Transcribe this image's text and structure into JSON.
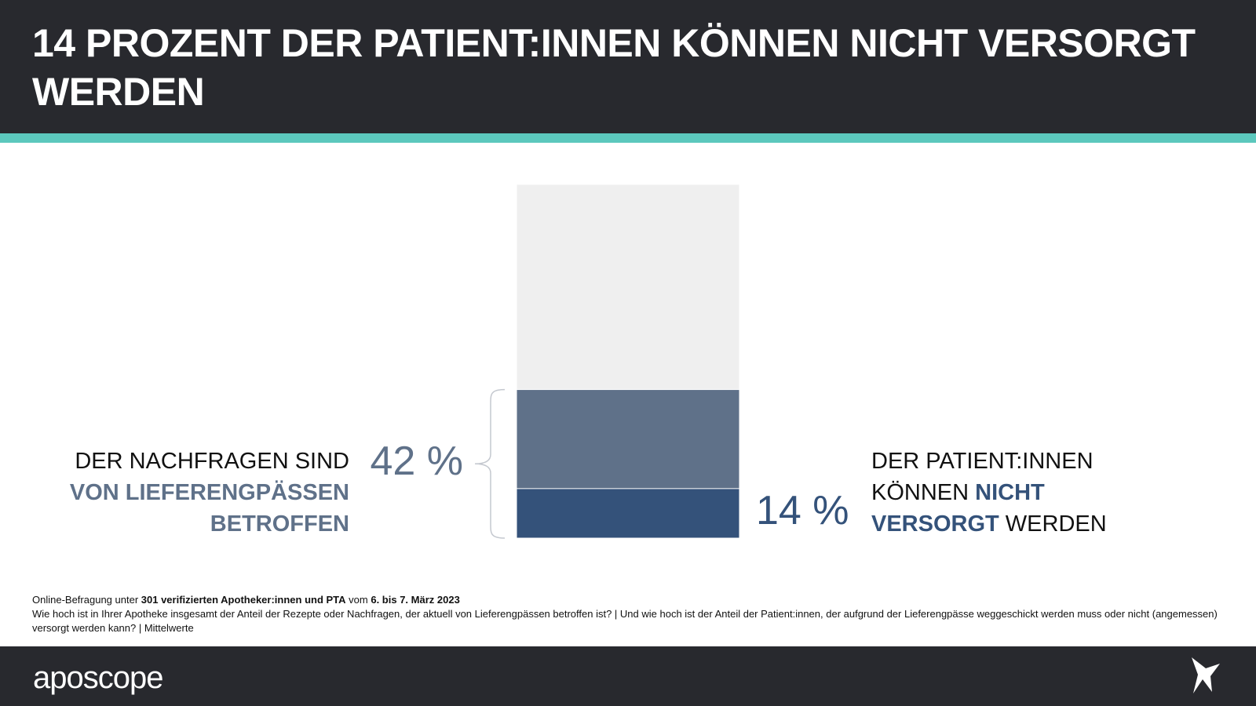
{
  "chart_data": {
    "type": "bar",
    "title": "14 PROZENT DER PATIENT:INNEN KÖNNEN NICHT VERSORGT WERDEN",
    "values": [
      100,
      42,
      14
    ],
    "value_labels": [
      null,
      "42 %",
      "14 %"
    ],
    "colors": [
      "#efefef",
      "#5f7189",
      "#34527a"
    ],
    "ylim": [
      0,
      100
    ],
    "annotations": [
      {
        "side": "left",
        "color": "#5f7189",
        "lines": [
          [
            {
              "text": "DER NACHFRAGEN SIND",
              "bold": false
            }
          ],
          [
            {
              "text": "VON LIEFERENGPÄSSEN",
              "bold": true
            }
          ],
          [
            {
              "text": "BETROFFEN",
              "bold": true
            }
          ]
        ]
      },
      {
        "side": "right",
        "color": "#34527a",
        "lines": [
          [
            {
              "text": "DER PATIENT:INNEN",
              "bold": false
            }
          ],
          [
            {
              "text": "KÖNNEN ",
              "bold": false
            },
            {
              "text": "NICHT",
              "bold": true
            }
          ],
          [
            {
              "text": "VERSORGT",
              "bold": true
            },
            {
              "text": " WERDEN",
              "bold": false
            }
          ]
        ]
      }
    ]
  },
  "footer": {
    "source": [
      {
        "text": "Online-Befragung unter ",
        "bold": false
      },
      {
        "text": "301 verifizierten Apotheker:innen und PTA",
        "bold": true
      },
      {
        "text": " vom ",
        "bold": false
      },
      {
        "text": "6. bis 7. März 2023",
        "bold": true
      }
    ],
    "question": "Wie hoch ist in Ihrer Apotheke insgesamt der Anteil der Rezepte oder Nachfragen, der aktuell von Lieferengpässen betroffen ist? | Und wie hoch ist der Anteil der Patient:innen, der aufgrund der Lieferengpässe weggeschickt werden muss oder nicht (angemessen) versorgt werden kann? | Mittelwerte",
    "logo": "aposcope"
  }
}
